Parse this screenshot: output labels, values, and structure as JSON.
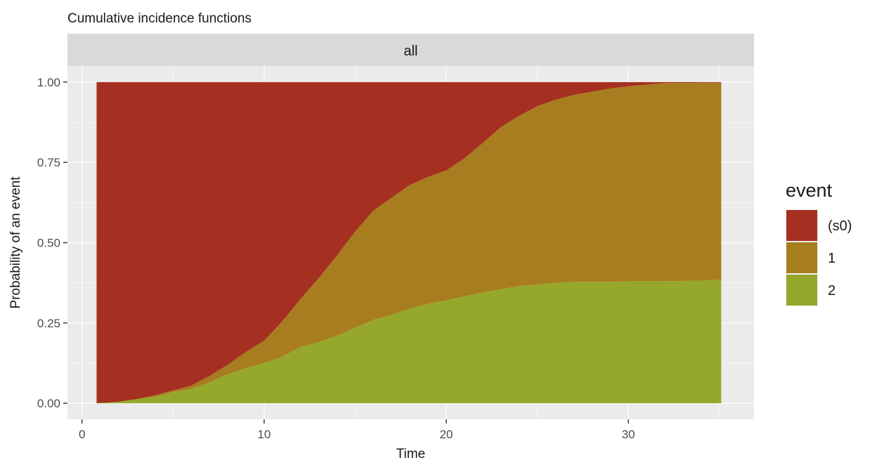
{
  "chart_data": {
    "type": "area",
    "title": "Cumulative incidence functions",
    "facet_label": "all",
    "xlabel": "Time",
    "ylabel": "Probability of an event",
    "xlim": [
      -0.8,
      36.9
    ],
    "ylim": [
      -0.05,
      1.05
    ],
    "xticks": [
      0,
      10,
      20,
      30
    ],
    "yticks": [
      0.0,
      0.25,
      0.5,
      0.75,
      1.0
    ],
    "xtick_labels": [
      "0",
      "10",
      "20",
      "30"
    ],
    "ytick_labels": [
      "0.00",
      "0.25",
      "0.50",
      "0.75",
      "1.00"
    ],
    "stacked": true,
    "legend": {
      "title": "event",
      "position": "right"
    },
    "x": [
      0.8,
      2,
      3,
      4,
      5,
      6,
      7,
      8,
      9,
      10,
      11,
      12,
      13,
      14,
      15,
      16,
      17,
      18,
      19,
      20,
      21,
      22,
      23,
      24,
      25,
      26,
      27,
      28,
      29,
      30,
      31,
      32,
      33,
      34,
      35.1
    ],
    "series": [
      {
        "name": "2",
        "color": "#96A82B",
        "values": [
          0.0,
          0.005,
          0.013,
          0.02,
          0.035,
          0.045,
          0.065,
          0.09,
          0.11,
          0.125,
          0.145,
          0.175,
          0.19,
          0.21,
          0.235,
          0.26,
          0.275,
          0.295,
          0.31,
          0.32,
          0.333,
          0.345,
          0.355,
          0.365,
          0.37,
          0.375,
          0.378,
          0.378,
          0.378,
          0.38,
          0.38,
          0.38,
          0.381,
          0.382,
          0.385
        ]
      },
      {
        "name": "1",
        "color": "#A87D1F",
        "values": [
          0.0,
          0.0,
          0.0,
          0.005,
          0.005,
          0.01,
          0.02,
          0.03,
          0.05,
          0.07,
          0.11,
          0.15,
          0.2,
          0.25,
          0.3,
          0.34,
          0.365,
          0.385,
          0.395,
          0.405,
          0.43,
          0.465,
          0.505,
          0.53,
          0.555,
          0.57,
          0.582,
          0.592,
          0.602,
          0.607,
          0.612,
          0.617,
          0.616,
          0.616,
          0.613
        ]
      },
      {
        "name": "(s0)",
        "color": "#A52F20",
        "values": [
          1.0,
          0.995,
          0.987,
          0.975,
          0.96,
          0.945,
          0.915,
          0.88,
          0.84,
          0.805,
          0.745,
          0.675,
          0.61,
          0.54,
          0.465,
          0.4,
          0.36,
          0.32,
          0.295,
          0.275,
          0.237,
          0.19,
          0.14,
          0.105,
          0.075,
          0.055,
          0.04,
          0.03,
          0.02,
          0.013,
          0.008,
          0.003,
          0.003,
          0.002,
          0.002
        ]
      }
    ]
  }
}
